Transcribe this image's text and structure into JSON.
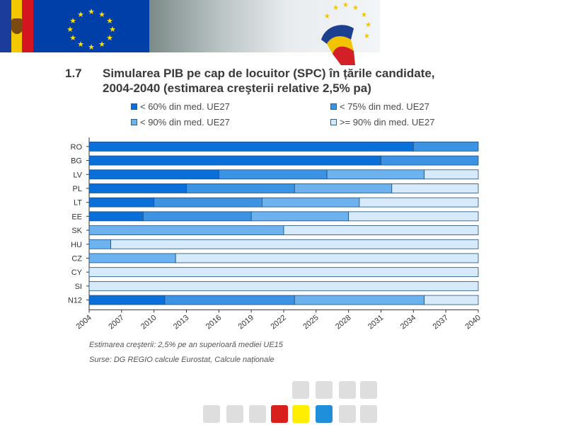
{
  "header": {
    "section_number": "1.7",
    "title_line1": "Simularea PIB pe cap de locuitor (SPC) în țările candidate,",
    "title_line2": "2004-2040 (estimarea creşterii relative 2,5% pa)"
  },
  "chart_data": {
    "type": "bar",
    "orientation": "horizontal-stacked",
    "title": "Simularea PIB pe cap de locuitor (SPC) în țările candidate, 2004-2040 (estimarea creşterii relative 2,5% pa)",
    "categories": [
      "RO",
      "BG",
      "LV",
      "PL",
      "LT",
      "EE",
      "SK",
      "HU",
      "CZ",
      "CY",
      "SI",
      "N12"
    ],
    "x_ticks": [
      "2004",
      "2007",
      "2010",
      "2013",
      "2016",
      "2019",
      "2022",
      "2025",
      "2028",
      "2031",
      "2034",
      "2037",
      "2040"
    ],
    "xlim": [
      2004,
      2040
    ],
    "legend_position": "top",
    "series": [
      {
        "name": "< 60% din med. UE27",
        "color": "#0b6fd9",
        "values": [
          [
            2004,
            2034
          ],
          [
            2004,
            2031
          ],
          [
            2004,
            2016
          ],
          [
            2004,
            2013
          ],
          [
            2004,
            2010
          ],
          [
            2004,
            2009
          ],
          null,
          null,
          null,
          null,
          null,
          [
            2004,
            2011
          ]
        ]
      },
      {
        "name": "< 75% din med. UE27",
        "color": "#3d93e3",
        "values": [
          [
            2034,
            2040
          ],
          [
            2031,
            2040
          ],
          [
            2016,
            2026
          ],
          [
            2013,
            2023
          ],
          [
            2010,
            2020
          ],
          [
            2009,
            2019
          ],
          null,
          null,
          null,
          null,
          null,
          [
            2011,
            2023
          ]
        ]
      },
      {
        "name": "< 90% din med. UE27",
        "color": "#6cb2ee",
        "values": [
          null,
          null,
          [
            2026,
            2035
          ],
          [
            2023,
            2032
          ],
          [
            2020,
            2029
          ],
          [
            2019,
            2028
          ],
          [
            2004,
            2022
          ],
          [
            2004,
            2006
          ],
          [
            2004,
            2012
          ],
          null,
          null,
          [
            2023,
            2035
          ]
        ]
      },
      {
        "name": ">= 90% din med. UE27",
        "color": "#d6eafb",
        "values": [
          null,
          null,
          [
            2035,
            2040
          ],
          [
            2032,
            2040
          ],
          [
            2029,
            2040
          ],
          [
            2028,
            2040
          ],
          [
            2022,
            2040
          ],
          [
            2006,
            2040
          ],
          [
            2012,
            2040
          ],
          [
            2004,
            2040
          ],
          [
            2004,
            2040
          ],
          [
            2035,
            2040
          ]
        ]
      }
    ]
  },
  "notes": {
    "line1": "Estimarea creşterii: 2,5% pe an superioară mediei UE15",
    "line2": "Surse: DG REGIO calcule Eurostat, Calcule naționale"
  },
  "colors": {
    "nav_red": "#d8211d",
    "nav_yellow": "#ffee00",
    "nav_blue": "#1f8fdb",
    "nav_grey": "#dedede"
  }
}
